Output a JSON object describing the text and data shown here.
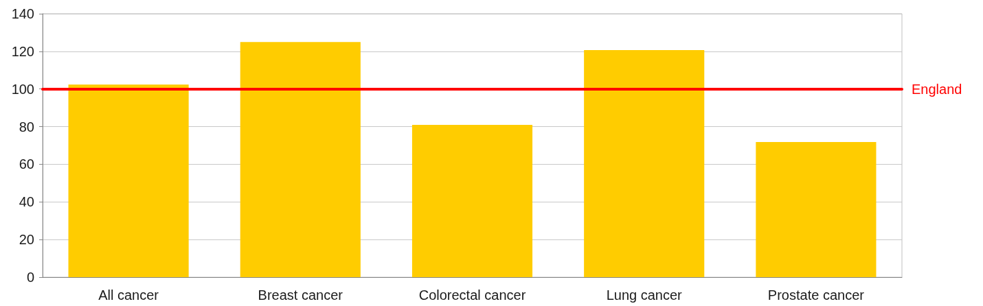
{
  "chart_data": {
    "type": "bar",
    "categories": [
      "All cancer",
      "Breast cancer",
      "Colorectal cancer",
      "Lung cancer",
      "Prostate cancer"
    ],
    "values": [
      102.4,
      125,
      80.9,
      120.7,
      71.8
    ],
    "color": "#ffcc00",
    "ylim": [
      0,
      140
    ],
    "yticks": [
      0,
      20,
      40,
      60,
      80,
      100,
      120,
      140
    ],
    "grid": "y",
    "ref_lines": [
      {
        "axis": "y",
        "value": 100,
        "label": "England",
        "color": "#ff0000",
        "line_style": "solid"
      }
    ]
  }
}
